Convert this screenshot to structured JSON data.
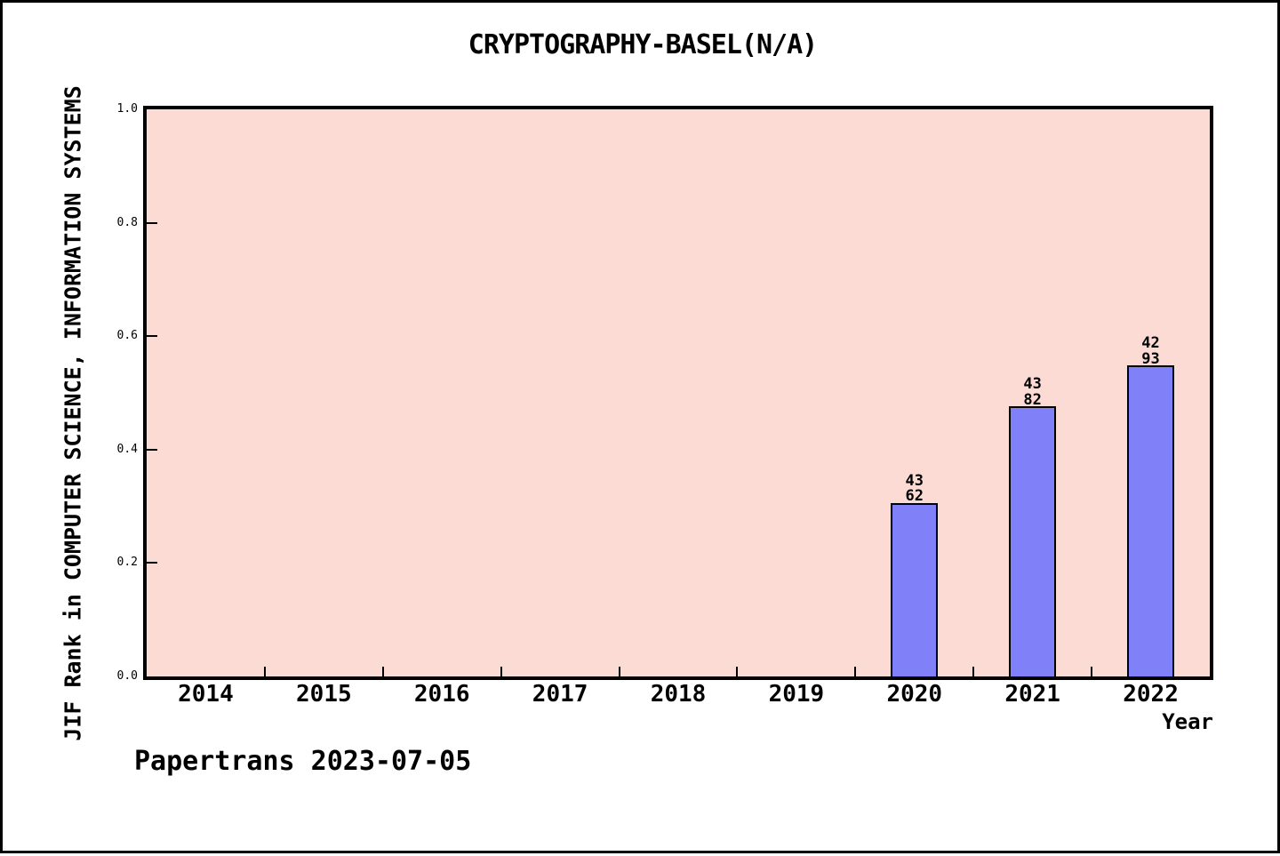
{
  "chart_data": {
    "type": "bar",
    "title": "CRYPTOGRAPHY-BASEL(N/A)",
    "xlabel": "Year",
    "ylabel": "JIF Rank in COMPUTER SCIENCE, INFORMATION SYSTEMS",
    "categories": [
      "2014",
      "2015",
      "2016",
      "2017",
      "2018",
      "2019",
      "2020",
      "2021",
      "2022"
    ],
    "yticks": [
      "0.0",
      "0.2",
      "0.4",
      "0.6",
      "0.8",
      "1.0"
    ],
    "ylim": [
      0.0,
      1.0
    ],
    "grid": false,
    "legend_position": "none",
    "bars": [
      {
        "year": "2020",
        "rank": "43",
        "total": "62",
        "height": 0.306
      },
      {
        "year": "2021",
        "rank": "43",
        "total": "82",
        "height": 0.476
      },
      {
        "year": "2022",
        "rank": "42",
        "total": "93",
        "height": 0.548
      }
    ],
    "colors": {
      "plot_background": "#fddbd5",
      "bar_fill": "#8080f8",
      "bar_edge": "#000000",
      "axis": "#000000",
      "text": "#000000"
    }
  },
  "footer": {
    "text": "Papertrans 2023-07-05"
  }
}
